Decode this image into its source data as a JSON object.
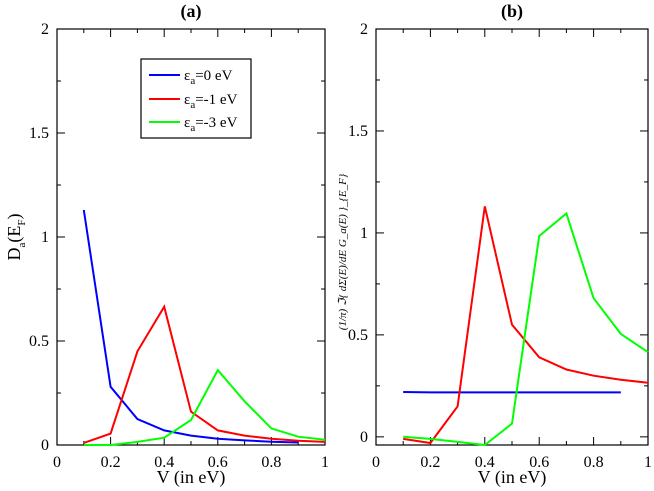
{
  "chart_data": [
    {
      "type": "line",
      "title": "(a)",
      "xlabel": "V (in eV)",
      "ylabel": {
        "main": "D",
        "sub1": "a",
        "mid": "(E",
        "sub2": "F",
        "end": ")"
      },
      "xlim": [
        0,
        1
      ],
      "ylim": [
        0,
        2
      ],
      "xticks": [
        "0",
        "0.2",
        "0.4",
        "0.6",
        "0.8",
        "1"
      ],
      "yticks": [
        "0",
        "0.5",
        "1",
        "1.5",
        "2"
      ],
      "legend": {
        "position": "top-center",
        "entries": [
          {
            "prefix": "ε",
            "sub": "a",
            "suffix": "=0 eV"
          },
          {
            "prefix": "ε",
            "sub": "a",
            "suffix": "=-1 eV"
          },
          {
            "prefix": "ε",
            "sub": "a",
            "suffix": "=-3 eV"
          }
        ]
      },
      "series": [
        {
          "name": "εa=0 eV",
          "color": "#0000ff",
          "x": [
            0.1,
            0.2,
            0.3,
            0.4,
            0.5,
            0.6,
            0.7,
            0.8,
            0.9
          ],
          "y": [
            1.13,
            0.28,
            0.125,
            0.07,
            0.045,
            0.03,
            0.022,
            0.016,
            0.012
          ]
        },
        {
          "name": "εa=-1 eV",
          "color": "#ff0000",
          "x": [
            0.1,
            0.2,
            0.3,
            0.4,
            0.5,
            0.6,
            0.7,
            0.8,
            0.9,
            1.0
          ],
          "y": [
            0.01,
            0.055,
            0.45,
            0.665,
            0.16,
            0.07,
            0.045,
            0.03,
            0.02,
            0.015
          ]
        },
        {
          "name": "εa=-3 eV",
          "color": "#00ff00",
          "x": [
            0.1,
            0.2,
            0.3,
            0.4,
            0.5,
            0.6,
            0.7,
            0.8,
            0.9,
            1.0
          ],
          "y": [
            0.0,
            0.0,
            0.015,
            0.035,
            0.12,
            0.36,
            0.21,
            0.08,
            0.04,
            0.025
          ]
        }
      ]
    },
    {
      "type": "line",
      "title": "(b)",
      "xlabel": "V (in eV)",
      "ylabel": {
        "text": "(1/π) ℑ{ dΣ(E)/dE  G_a(E) }_{E_F}"
      },
      "xlim": [
        0,
        1
      ],
      "ylim": [
        -0.04,
        2
      ],
      "xticks": [
        "0",
        "0.2",
        "0.4",
        "0.6",
        "0.8",
        "1"
      ],
      "yticks": [
        "0",
        "0.5",
        "1",
        "1.5",
        "2"
      ],
      "series": [
        {
          "name": "εa=0 eV",
          "color": "#0000ff",
          "x": [
            0.1,
            0.2,
            0.3,
            0.4,
            0.5,
            0.6,
            0.7,
            0.8,
            0.9
          ],
          "y": [
            0.22,
            0.218,
            0.218,
            0.218,
            0.218,
            0.218,
            0.218,
            0.218,
            0.218
          ]
        },
        {
          "name": "εa=-1 eV",
          "color": "#ff0000",
          "x": [
            0.1,
            0.2,
            0.3,
            0.4,
            0.5,
            0.6,
            0.7,
            0.8,
            0.9,
            1.0
          ],
          "y": [
            -0.01,
            -0.03,
            0.15,
            1.13,
            0.55,
            0.39,
            0.33,
            0.3,
            0.28,
            0.265
          ]
        },
        {
          "name": "εa=-3 eV",
          "color": "#00ff00",
          "x": [
            0.1,
            0.2,
            0.3,
            0.4,
            0.5,
            0.6,
            0.7,
            0.8,
            0.9,
            1.0
          ],
          "y": [
            0.0,
            -0.01,
            -0.025,
            -0.04,
            0.065,
            0.985,
            1.095,
            0.68,
            0.505,
            0.415
          ]
        }
      ]
    }
  ]
}
